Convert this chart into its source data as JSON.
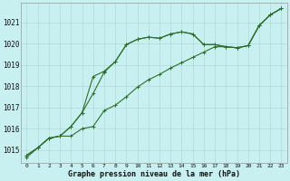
{
  "title": "Graphe pression niveau de la mer (hPa)",
  "background_color": "#c8f0f0",
  "grid_color": "#b0d8d8",
  "line_color": "#2d6e2d",
  "x_ticks": [
    0,
    1,
    2,
    3,
    4,
    5,
    6,
    7,
    8,
    9,
    10,
    11,
    12,
    13,
    14,
    15,
    16,
    17,
    18,
    19,
    20,
    21,
    22,
    23
  ],
  "y_min": 1014.4,
  "y_max": 1021.9,
  "y_ticks": [
    1015,
    1016,
    1017,
    1018,
    1019,
    1020,
    1021
  ],
  "series1_x": [
    0,
    1,
    2,
    3,
    4,
    5,
    6,
    7,
    8,
    9,
    10,
    11,
    12,
    13,
    14,
    15,
    16,
    17,
    18,
    19,
    20,
    21,
    22,
    23
  ],
  "series1_y": [
    1014.65,
    1015.1,
    1015.55,
    1015.65,
    1015.65,
    1016.0,
    1016.1,
    1016.85,
    1017.1,
    1017.5,
    1017.95,
    1018.3,
    1018.55,
    1018.85,
    1019.1,
    1019.35,
    1019.6,
    1019.85,
    1019.85,
    1019.8,
    1019.9,
    1020.85,
    1021.35,
    1021.65
  ],
  "series2_x": [
    0,
    1,
    2,
    3,
    4,
    5,
    6,
    7,
    8,
    9,
    10,
    11,
    12,
    13,
    14,
    15,
    16,
    17,
    18,
    19,
    20,
    21,
    22,
    23
  ],
  "series2_y": [
    1014.75,
    1015.1,
    1015.55,
    1015.65,
    1016.1,
    1016.75,
    1018.45,
    1018.7,
    1019.15,
    1019.95,
    1020.2,
    1020.3,
    1020.25,
    1020.45,
    1020.55,
    1020.45,
    1019.95,
    1019.95,
    1019.85,
    1019.8,
    1019.9,
    1020.85,
    1021.35,
    1021.65
  ],
  "series3_x": [
    0,
    1,
    2,
    3,
    4,
    5,
    6,
    7,
    8,
    9,
    10,
    11,
    12,
    13,
    14,
    15,
    16,
    17,
    18,
    19,
    20,
    21,
    22,
    23
  ],
  "series3_y": [
    1014.75,
    1015.1,
    1015.55,
    1015.65,
    1016.1,
    1016.75,
    1017.65,
    1018.65,
    1019.15,
    1019.95,
    1020.2,
    1020.3,
    1020.25,
    1020.45,
    1020.55,
    1020.45,
    1019.95,
    1019.95,
    1019.85,
    1019.8,
    1019.9,
    1020.85,
    1021.35,
    1021.65
  ]
}
